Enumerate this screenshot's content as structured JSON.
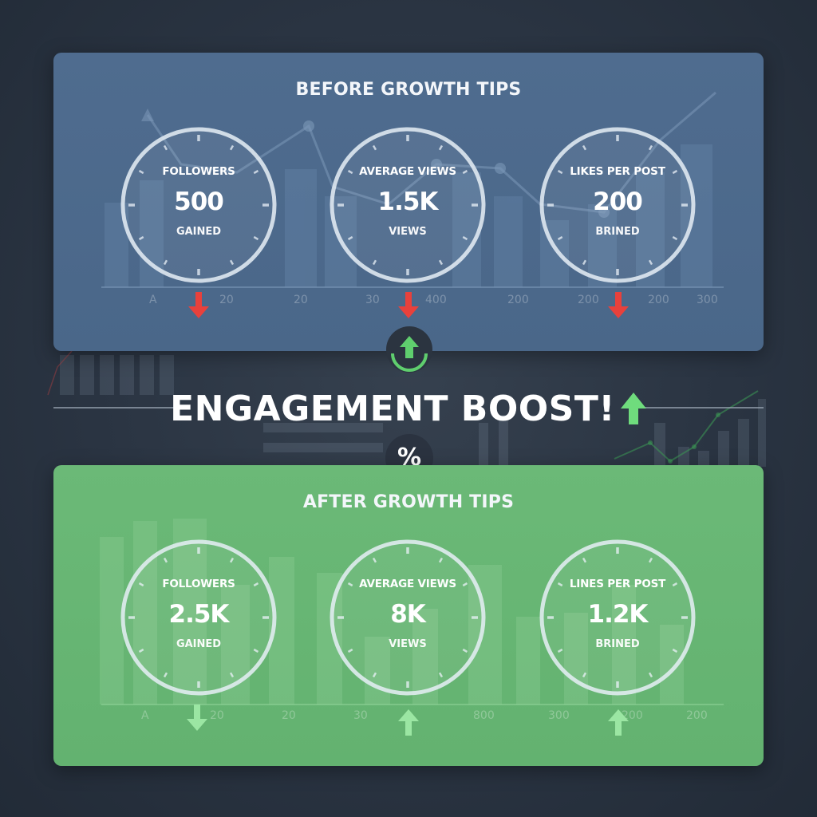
{
  "before": {
    "title": "BEFORE GROWTH TIPS",
    "gauges": [
      {
        "label": "FOLLOWERS",
        "value": "500",
        "unit": "GAINED"
      },
      {
        "label": "AVERAGE VIEWS",
        "value": "1.5K",
        "unit": "VIEWS"
      },
      {
        "label": "LIKES PER POST",
        "value": "200",
        "unit": "BRINED"
      }
    ],
    "axis_labels": [
      "A",
      "20",
      "20",
      "30",
      "400",
      "200",
      "200",
      "200",
      "300"
    ],
    "trend": "down"
  },
  "after": {
    "title": "AFTER GROWTH TIPS",
    "gauges": [
      {
        "label": "FOLLOWERS",
        "value": "2.5K",
        "unit": "GAINED"
      },
      {
        "label": "AVERAGE VIEWS",
        "value": "8K",
        "unit": "VIEWS"
      },
      {
        "label": "LINES PER POST",
        "value": "1.2K",
        "unit": "BRINED"
      }
    ],
    "axis_labels": [
      "A",
      "20",
      "20",
      "30",
      "800",
      "300",
      "200",
      "200"
    ]
  },
  "headline": "ENGAGEMENT BOOST!",
  "percent_symbol": "%",
  "colors": {
    "before_panel": "#4f6c8f",
    "after_panel": "#68b674",
    "background": "#2a3442",
    "arrow_down": "#e8413c",
    "arrow_up_green": "#6fdc7d",
    "gauge_ring": "#d9e2ec"
  }
}
